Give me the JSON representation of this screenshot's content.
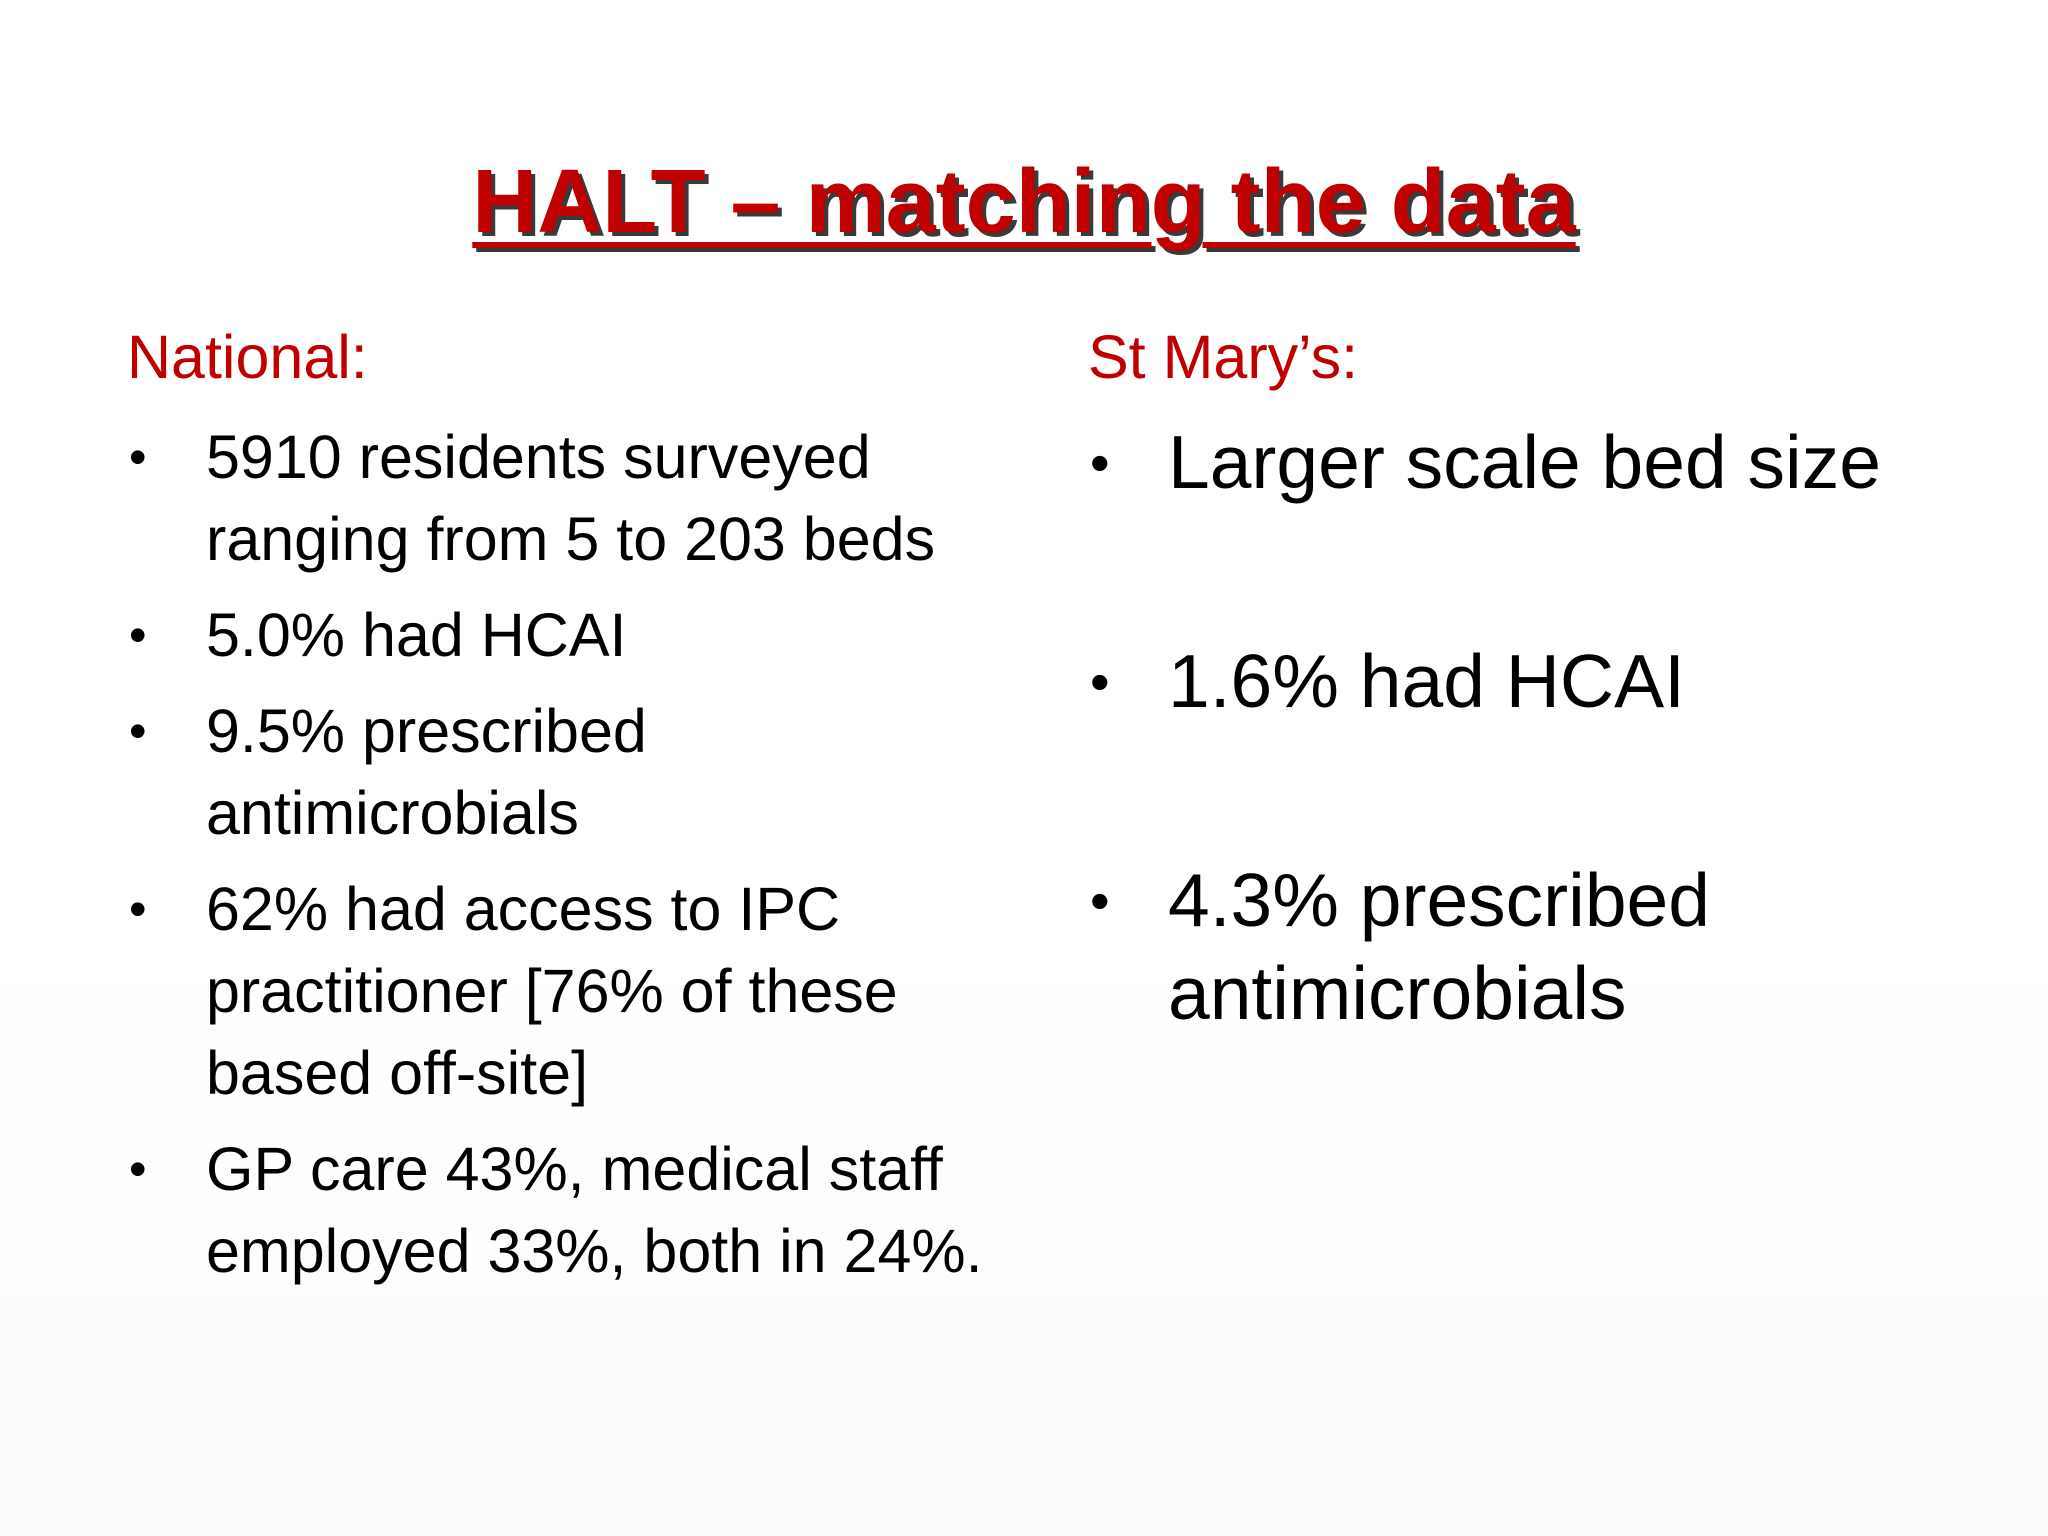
{
  "title": "HALT – matching the data",
  "left": {
    "heading": "National:",
    "bullets": [
      "5910 residents surveyed ranging from 5 to 203 beds",
      "5.0% had HCAI",
      "9.5% prescribed antimicrobials",
      "62% had access to IPC practitioner [76% of these based off-site]",
      "GP care 43%, medical staff employed 33%, both in 24%."
    ]
  },
  "right": {
    "heading": "St Mary’s:",
    "bullets": [
      "Larger scale bed size",
      "1.6% had HCAI",
      "4.3% prescribed antimicrobials"
    ]
  },
  "bullet_glyph": "•",
  "colors": {
    "title": "#c00000",
    "heading": "#c00000",
    "body": "#000000",
    "background": "#ffffff"
  }
}
